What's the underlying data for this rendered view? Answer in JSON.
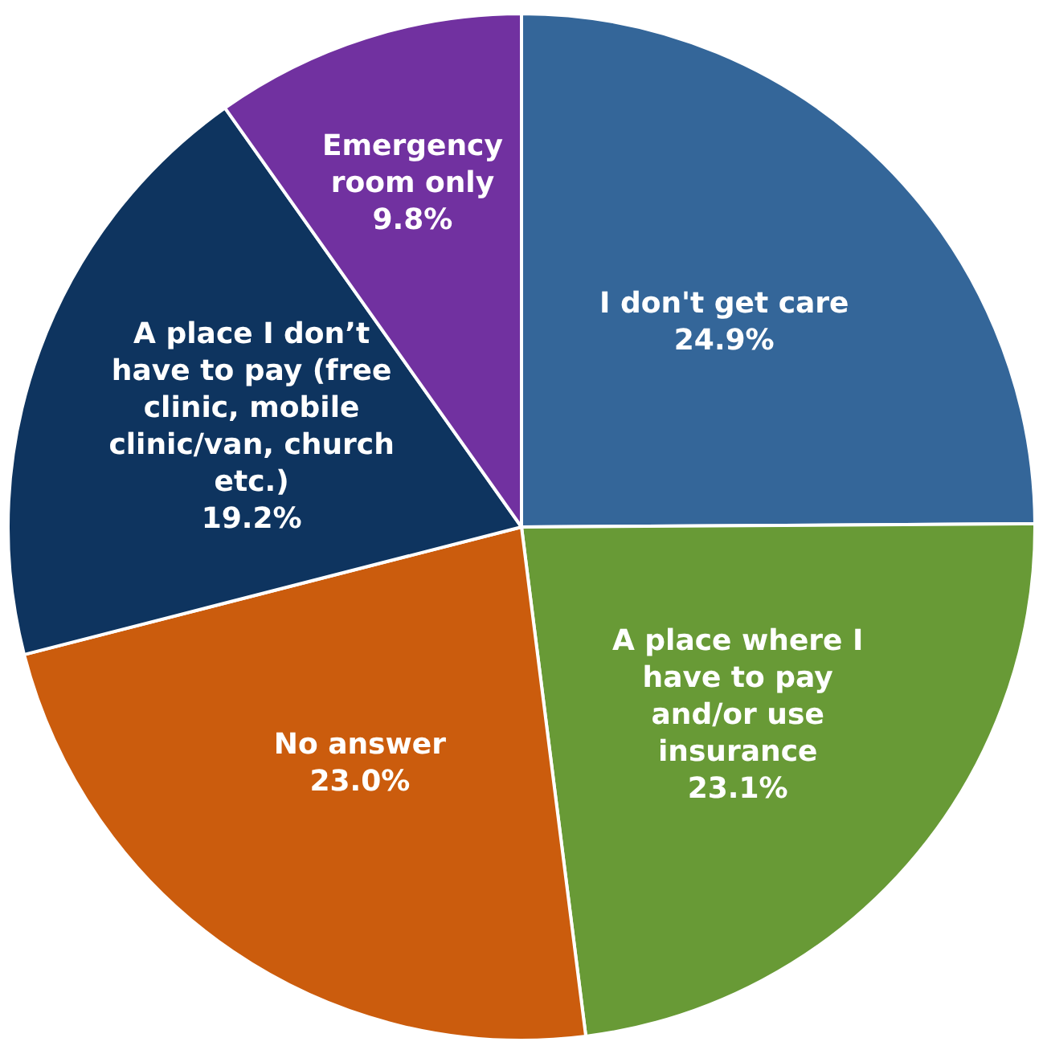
{
  "chart_data": {
    "type": "pie",
    "categories": [
      "I don't get care",
      "A place where I have to pay and/or use insurance",
      "No answer",
      "A place I don’t have to pay (free clinic, mobile clinic/van, church etc.)",
      "Emergency room only"
    ],
    "values": [
      24.9,
      23.1,
      23.0,
      19.2,
      9.8
    ],
    "colors": [
      "#346699",
      "#689a36",
      "#cb5c0d",
      "#0e345f",
      "#7131a0"
    ],
    "value_labels": [
      "24.9%",
      "23.1%",
      "23.0%",
      "19.2%",
      "9.8%"
    ],
    "legend": false
  }
}
